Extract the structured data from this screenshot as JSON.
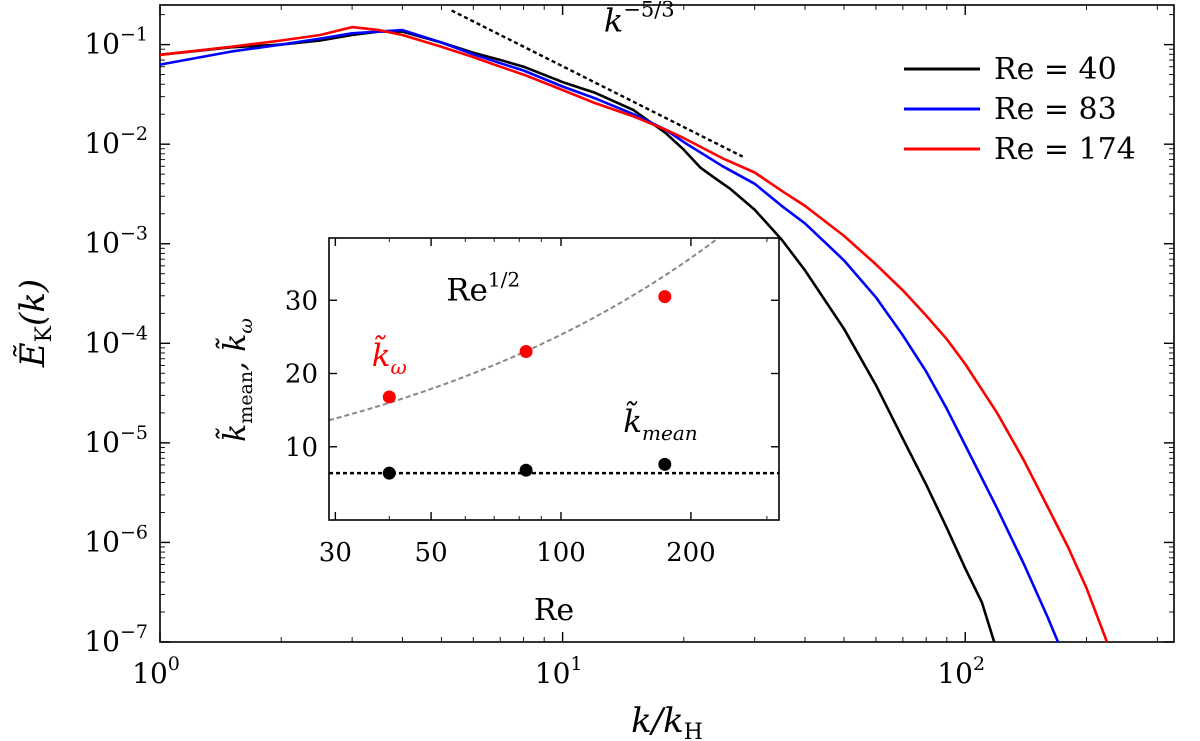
{
  "chart_data": [
    {
      "type": "line",
      "title": "",
      "xlabel": "k/k_H",
      "ylabel": "Ẽ_K(k)",
      "xscale": "log",
      "yscale": "log",
      "xlim": [
        1,
        330
      ],
      "ylim": [
        1e-07,
        0.25
      ],
      "xticks": [
        {
          "value": 1,
          "base": "10",
          "exp": "0"
        },
        {
          "value": 10,
          "base": "10",
          "exp": "1"
        },
        {
          "value": 100,
          "base": "10",
          "exp": "2"
        }
      ],
      "yticks": [
        {
          "value": 0.1,
          "base": "10",
          "exp": "−1"
        },
        {
          "value": 0.01,
          "base": "10",
          "exp": "−2"
        },
        {
          "value": 0.001,
          "base": "10",
          "exp": "−3"
        },
        {
          "value": 0.0001,
          "base": "10",
          "exp": "−4"
        },
        {
          "value": 1e-05,
          "base": "10",
          "exp": "−5"
        },
        {
          "value": 1e-06,
          "base": "10",
          "exp": "−6"
        },
        {
          "value": 1e-07,
          "base": "10",
          "exp": "−7"
        }
      ],
      "legend": {
        "position": "top-right",
        "entries": [
          {
            "label": "Re = 40",
            "color": "#000000"
          },
          {
            "label": "Re = 83",
            "color": "#0000ff"
          },
          {
            "label": "Re = 174",
            "color": "#ff0000"
          }
        ]
      },
      "series": [
        {
          "name": "Re = 40",
          "color": "#000000",
          "points": [
            [
              1,
              0.079
            ],
            [
              1.5,
              0.094
            ],
            [
              2,
              0.1
            ],
            [
              2.5,
              0.11
            ],
            [
              3,
              0.125
            ],
            [
              3.5,
              0.135
            ],
            [
              4,
              0.135
            ],
            [
              5,
              0.105
            ],
            [
              6,
              0.083
            ],
            [
              7,
              0.07
            ],
            [
              8,
              0.06
            ],
            [
              10,
              0.042
            ],
            [
              12,
              0.033
            ],
            [
              15,
              0.022
            ],
            [
              18,
              0.013
            ],
            [
              20,
              0.0088
            ],
            [
              22,
              0.0058
            ],
            [
              24,
              0.0045
            ],
            [
              26,
              0.0036
            ],
            [
              30,
              0.0022
            ],
            [
              35,
              0.0011
            ],
            [
              40,
              0.00054
            ],
            [
              50,
              0.00014
            ],
            [
              60,
              3.8e-05
            ],
            [
              70,
              1.1e-05
            ],
            [
              80,
              3.8e-06
            ],
            [
              90,
              1.4e-06
            ],
            [
              100,
              5.5e-07
            ],
            [
              110,
              2.5e-07
            ],
            [
              118,
              1e-07
            ]
          ]
        },
        {
          "name": "Re = 83",
          "color": "#0000ff",
          "points": [
            [
              1,
              0.063
            ],
            [
              1.5,
              0.085
            ],
            [
              2,
              0.1
            ],
            [
              2.5,
              0.115
            ],
            [
              3,
              0.13
            ],
            [
              3.5,
              0.135
            ],
            [
              4,
              0.14
            ],
            [
              5,
              0.105
            ],
            [
              6,
              0.08
            ],
            [
              7,
              0.065
            ],
            [
              8,
              0.055
            ],
            [
              10,
              0.038
            ],
            [
              12,
              0.029
            ],
            [
              15,
              0.02
            ],
            [
              18,
              0.014
            ],
            [
              20,
              0.0105
            ],
            [
              25,
              0.006
            ],
            [
              30,
              0.004
            ],
            [
              35,
              0.0024
            ],
            [
              40,
              0.0016
            ],
            [
              50,
              0.00068
            ],
            [
              60,
              0.00029
            ],
            [
              70,
              0.00012
            ],
            [
              80,
              5.2e-05
            ],
            [
              90,
              2.2e-05
            ],
            [
              100,
              9.5e-06
            ],
            [
              120,
              2.2e-06
            ],
            [
              140,
              6e-07
            ],
            [
              160,
              1.8e-07
            ],
            [
              170,
              1e-07
            ]
          ]
        },
        {
          "name": "Re = 174",
          "color": "#ff0000",
          "points": [
            [
              1,
              0.079
            ],
            [
              1.5,
              0.095
            ],
            [
              2,
              0.11
            ],
            [
              2.5,
              0.125
            ],
            [
              3,
              0.15
            ],
            [
              3.5,
              0.14
            ],
            [
              4,
              0.125
            ],
            [
              5,
              0.095
            ],
            [
              6,
              0.075
            ],
            [
              7,
              0.06
            ],
            [
              8,
              0.05
            ],
            [
              10,
              0.035
            ],
            [
              12,
              0.026
            ],
            [
              15,
              0.019
            ],
            [
              18,
              0.014
            ],
            [
              20,
              0.0115
            ],
            [
              25,
              0.0072
            ],
            [
              30,
              0.0052
            ],
            [
              35,
              0.0034
            ],
            [
              40,
              0.0024
            ],
            [
              50,
              0.0012
            ],
            [
              60,
              0.00062
            ],
            [
              70,
              0.00034
            ],
            [
              80,
              0.00019
            ],
            [
              90,
              0.00011
            ],
            [
              100,
              6.2e-05
            ],
            [
              120,
              2e-05
            ],
            [
              140,
              6.6e-06
            ],
            [
              160,
              2.3e-06
            ],
            [
              180,
              9e-07
            ],
            [
              200,
              3.5e-07
            ],
            [
              225,
              1e-07
            ]
          ]
        }
      ],
      "annotations": [
        {
          "label_base": "k",
          "label_exp": "−5/3",
          "label_x": 15.5,
          "label_y": 0.135,
          "line": [
            [
              5.3,
              0.22
            ],
            [
              28,
              0.0075
            ]
          ]
        }
      ]
    },
    {
      "type": "scatter",
      "title": "",
      "xlabel": "Re",
      "ylabel": "k̃_mean, k̃_ω",
      "xscale": "log",
      "yscale": "linear",
      "xlim": [
        29,
        320
      ],
      "ylim": [
        0,
        38.5
      ],
      "xticks": [
        {
          "value": 30,
          "label": "30"
        },
        {
          "value": 50,
          "label": "50"
        },
        {
          "value": 100,
          "label": "100"
        },
        {
          "value": 200,
          "label": "200"
        }
      ],
      "yticks": [
        {
          "value": 10,
          "label": "10"
        },
        {
          "value": 20,
          "label": "20"
        },
        {
          "value": 30,
          "label": "30"
        }
      ],
      "series": [
        {
          "name": "k̃_ω",
          "color": "#ff0000",
          "x": [
            40,
            83,
            174
          ],
          "y": [
            16.8,
            23.0,
            30.5
          ]
        },
        {
          "name": "k̃_mean",
          "color": "#000000",
          "x": [
            40,
            83,
            174
          ],
          "y": [
            6.4,
            6.8,
            7.6
          ]
        }
      ],
      "reference_lines": [
        {
          "name": "Re^(1/2) fit",
          "color": "#888888",
          "style": "dashed",
          "formula": "2.53*sqrt(Re)",
          "x_range": [
            29,
            320
          ]
        },
        {
          "name": "constant k̃_mean",
          "color": "#000000",
          "style": "dotted",
          "y": 6.4,
          "x_range": [
            29,
            320
          ]
        }
      ],
      "annotations": [
        {
          "text": "Re",
          "exp": "1/2",
          "x": 66,
          "y": 30,
          "color": "#000000"
        },
        {
          "text": "k̃",
          "sub": "ω",
          "x": 40,
          "y": 21,
          "color": "#ff0000"
        },
        {
          "text": "k̃",
          "sub": "mean",
          "x": 170,
          "y": 12,
          "color": "#000000"
        }
      ]
    }
  ]
}
